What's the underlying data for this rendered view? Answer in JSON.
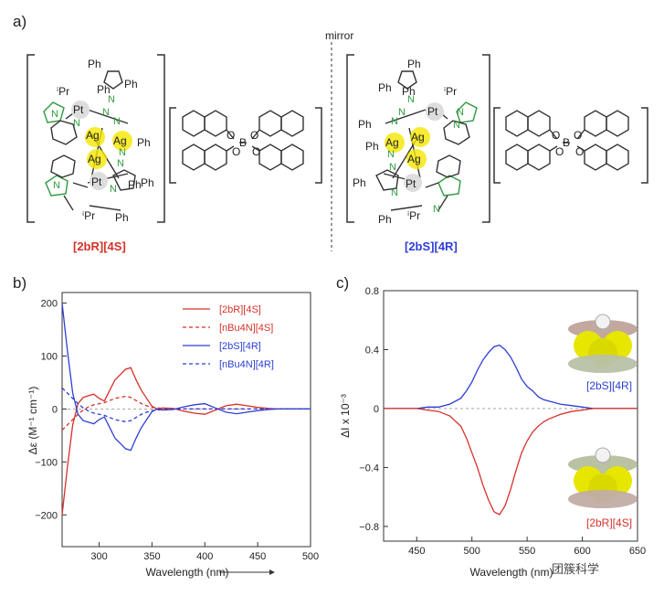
{
  "panels": {
    "a": "a)",
    "b": "b)",
    "c": "c)"
  },
  "panel_a": {
    "mirror_label": "mirror",
    "left_compound": "[2bR][4S]",
    "right_compound": "[2bS][4R]",
    "atom_labels": {
      "pt": "Pt",
      "ag": "Ag",
      "ph": "Ph",
      "ipr": "iPr",
      "n": "N",
      "b": "B",
      "o": "O"
    }
  },
  "panel_b": {
    "xlabel": "Wavelength (nm)",
    "ylabel": "Δε (M⁻¹ cm⁻¹)",
    "legend": [
      "[2bR][4S]",
      "[nBu4N][4S]",
      "[2bS][4R]",
      "[nBu4N][4R]"
    ]
  },
  "panel_c": {
    "xlabel": "Wavelength (nm)",
    "ylabel": "ΔI x 10⁻³",
    "inset_top_label": "[2bS][4R]",
    "inset_bottom_label": "[2bR][4S]"
  },
  "watermark": "团簇科学",
  "colors": {
    "red": "#d6312a",
    "blue": "#2d3fd4",
    "green": "#2f9a3c",
    "silver_yellow": "#f2e500"
  },
  "chart_data": [
    {
      "type": "line",
      "xlabel": "Wavelength (nm)",
      "ylabel": "Δε (M⁻¹ cm⁻¹)",
      "xlim": [
        265,
        500
      ],
      "ylim": [
        -260,
        220
      ],
      "xticks": [
        300,
        350,
        400,
        450,
        500
      ],
      "yticks": [
        200,
        100,
        0,
        -100,
        -200
      ],
      "legend_position": "top-right",
      "series": [
        {
          "name": "[2bR][4S]",
          "style": "solid",
          "color": "#d6312a",
          "x": [
            265,
            270,
            275,
            280,
            285,
            290,
            295,
            300,
            305,
            310,
            315,
            320,
            325,
            330,
            335,
            340,
            345,
            350,
            355,
            360,
            370,
            380,
            390,
            400,
            410,
            420,
            430,
            440,
            450,
            460,
            470,
            480,
            490,
            500
          ],
          "y": [
            -200,
            -110,
            -30,
            10,
            22,
            25,
            28,
            20,
            15,
            35,
            55,
            65,
            75,
            78,
            55,
            35,
            20,
            5,
            0,
            2,
            1,
            -4,
            -8,
            -10,
            -2,
            6,
            9,
            6,
            3,
            1,
            0,
            0,
            0,
            0
          ]
        },
        {
          "name": "[nBu4N][4S]",
          "style": "dashed",
          "color": "#d6312a",
          "x": [
            265,
            270,
            275,
            280,
            285,
            290,
            295,
            300,
            305,
            310,
            315,
            320,
            325,
            330,
            335,
            340,
            345,
            350,
            360,
            380,
            400,
            420,
            440,
            460,
            480,
            500
          ],
          "y": [
            -40,
            -30,
            -20,
            -10,
            -2,
            4,
            8,
            10,
            12,
            16,
            20,
            22,
            24,
            22,
            16,
            10,
            6,
            3,
            1,
            0,
            0,
            0,
            0,
            0,
            0,
            0
          ]
        },
        {
          "name": "[2bS][4R]",
          "style": "solid",
          "color": "#2d3fd4",
          "x": [
            265,
            270,
            275,
            280,
            285,
            290,
            295,
            300,
            305,
            310,
            315,
            320,
            325,
            330,
            335,
            340,
            345,
            350,
            355,
            360,
            370,
            380,
            390,
            400,
            410,
            420,
            430,
            440,
            450,
            460,
            470,
            480,
            490,
            500
          ],
          "y": [
            200,
            110,
            30,
            -10,
            -22,
            -25,
            -28,
            -20,
            -15,
            -35,
            -55,
            -65,
            -75,
            -78,
            -55,
            -35,
            -20,
            -5,
            0,
            -2,
            -1,
            4,
            8,
            10,
            2,
            -6,
            -9,
            -6,
            -3,
            -1,
            0,
            0,
            0,
            0
          ]
        },
        {
          "name": "[nBu4N][4R]",
          "style": "dashed",
          "color": "#2d3fd4",
          "x": [
            265,
            270,
            275,
            280,
            285,
            290,
            295,
            300,
            305,
            310,
            315,
            320,
            325,
            330,
            335,
            340,
            345,
            350,
            360,
            380,
            400,
            420,
            440,
            460,
            480,
            500
          ],
          "y": [
            40,
            30,
            20,
            10,
            2,
            -4,
            -8,
            -10,
            -12,
            -16,
            -20,
            -22,
            -24,
            -22,
            -16,
            -10,
            -6,
            -3,
            -1,
            0,
            0,
            0,
            0,
            0,
            0,
            0
          ]
        }
      ]
    },
    {
      "type": "line",
      "xlabel": "Wavelength (nm)",
      "ylabel": "ΔI x 10⁻³",
      "xlim": [
        420,
        650
      ],
      "ylim": [
        -0.9,
        0.8
      ],
      "xticks": [
        450,
        500,
        550,
        600,
        650
      ],
      "yticks": [
        0.8,
        0.4,
        0,
        -0.4,
        -0.8
      ],
      "series": [
        {
          "color": "#2d3fd4",
          "x": [
            420,
            430,
            440,
            450,
            460,
            470,
            480,
            490,
            495,
            500,
            505,
            510,
            515,
            520,
            525,
            530,
            535,
            540,
            545,
            550,
            555,
            560,
            565,
            570,
            580,
            590,
            600,
            610,
            620,
            630,
            640,
            650
          ],
          "y": [
            0,
            0,
            0,
            0,
            0.01,
            0.01,
            0.03,
            0.07,
            0.12,
            0.18,
            0.26,
            0.33,
            0.38,
            0.42,
            0.43,
            0.4,
            0.35,
            0.28,
            0.2,
            0.15,
            0.12,
            0.08,
            0.06,
            0.05,
            0.03,
            0.02,
            0.01,
            0,
            0,
            0,
            0,
            0
          ]
        },
        {
          "color": "#d6312a",
          "x": [
            420,
            430,
            440,
            450,
            460,
            470,
            480,
            490,
            495,
            500,
            505,
            510,
            515,
            520,
            525,
            530,
            535,
            540,
            545,
            550,
            555,
            560,
            565,
            570,
            580,
            590,
            600,
            610,
            620,
            630,
            640,
            650
          ],
          "y": [
            0,
            0,
            0,
            0,
            -0.01,
            -0.02,
            -0.05,
            -0.12,
            -0.2,
            -0.3,
            -0.4,
            -0.52,
            -0.62,
            -0.7,
            -0.72,
            -0.66,
            -0.55,
            -0.42,
            -0.3,
            -0.22,
            -0.16,
            -0.12,
            -0.09,
            -0.07,
            -0.04,
            -0.02,
            -0.01,
            0,
            0,
            0,
            0,
            0
          ]
        }
      ]
    }
  ]
}
